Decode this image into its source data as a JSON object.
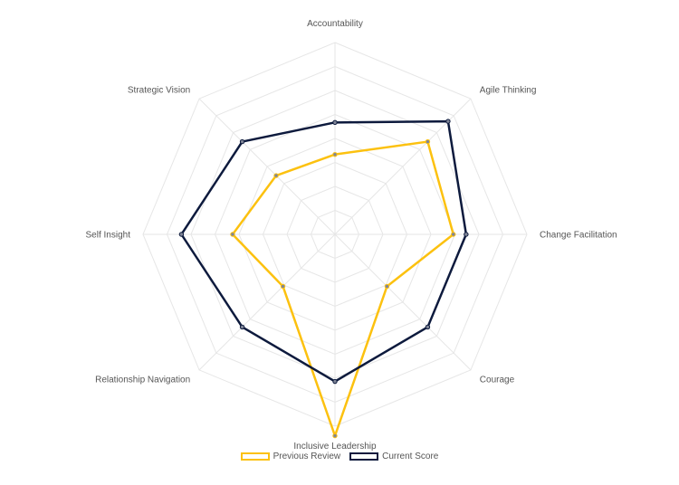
{
  "chart_data": {
    "type": "radar",
    "categories": [
      "Accountability",
      "Agile Thinking",
      "Change Facilitation",
      "Courage",
      "Inclusive Leadership",
      "Relationship Navigation",
      "Self Insight",
      "Strategic Vision"
    ],
    "series": [
      {
        "name": "Previous Review",
        "color": "#fcc10f",
        "values": [
          2.5,
          4.1,
          3.7,
          2.3,
          6.3,
          2.3,
          3.2,
          2.6
        ]
      },
      {
        "name": "Current Score",
        "color": "#0d1a3d",
        "values": [
          3.5,
          5.0,
          4.1,
          4.1,
          4.6,
          4.1,
          4.8,
          4.1
        ]
      }
    ],
    "range": [
      0,
      6
    ],
    "grid": true,
    "legend_position": "bottom"
  }
}
